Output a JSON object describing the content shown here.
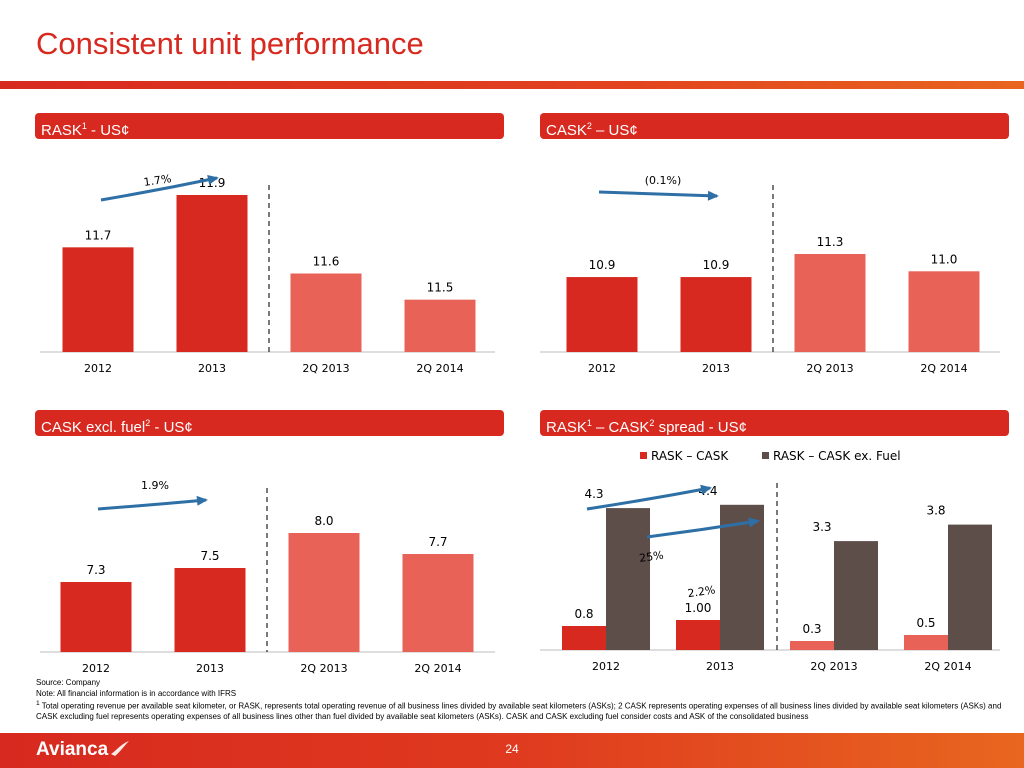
{
  "title": "Consistent unit performance",
  "colors": {
    "dark_red": "#d7291f",
    "light_red": "#e96257",
    "brown": "#5e4e4a",
    "arrow": "#2e6fa6"
  },
  "panels": [
    {
      "label": "RASK",
      "sup": "1",
      "suffix": " - US¢"
    },
    {
      "label": "CASK",
      "sup": "2",
      "suffix": " – US¢"
    },
    {
      "label": "CASK excl. fuel",
      "sup": "2",
      "suffix": " - US¢"
    },
    {
      "label": "RASK",
      "sup": "1",
      "suffix": " – CASK",
      "sup2": "2",
      "suffix2": " spread - US¢"
    }
  ],
  "chart_data": [
    {
      "type": "bar",
      "title": "RASK1 - US¢",
      "categories": [
        "2012",
        "2013",
        "2Q 2013",
        "2Q 2014"
      ],
      "values": [
        11.7,
        11.9,
        11.6,
        11.5
      ],
      "value_labels": [
        "11.7",
        "11.9",
        "11.6",
        "11.5"
      ],
      "annotations": [
        {
          "text": "1.7%",
          "between": [
            "2012",
            "2013"
          ]
        }
      ]
    },
    {
      "type": "bar",
      "title": "CASK2 – US¢",
      "categories": [
        "2012",
        "2013",
        "2Q 2013",
        "2Q 2014"
      ],
      "values": [
        10.9,
        10.9,
        11.3,
        11.0
      ],
      "value_labels": [
        "10.9",
        "10.9",
        "11.3",
        "11.0"
      ],
      "annotations": [
        {
          "text": "(0.1%)",
          "between": [
            "2012",
            "2013"
          ]
        }
      ]
    },
    {
      "type": "bar",
      "title": "CASK excl. fuel2 - US¢",
      "categories": [
        "2012",
        "2013",
        "2Q 2013",
        "2Q 2014"
      ],
      "values": [
        7.3,
        7.5,
        8.0,
        7.7
      ],
      "value_labels": [
        "7.3",
        "7.5",
        "8.0",
        "7.7"
      ],
      "annotations": [
        {
          "text": "1.9%",
          "between": [
            "2012",
            "2013"
          ]
        }
      ]
    },
    {
      "type": "bar",
      "title": "RASK1 – CASK2 spread - US¢",
      "categories": [
        "2012",
        "2013",
        "2Q 2013",
        "2Q 2014"
      ],
      "legend": "top",
      "series": [
        {
          "name": "RASK – CASK",
          "values": [
            0.8,
            1.0,
            0.3,
            0.5
          ],
          "value_labels": [
            "0.8",
            "1.00",
            "0.3",
            "0.5"
          ]
        },
        {
          "name": "RASK – CASK ex. Fuel",
          "values": [
            4.3,
            4.4,
            3.3,
            3.8
          ],
          "value_labels": [
            "4.3",
            "4.4",
            "3.3",
            "3.8"
          ]
        }
      ],
      "annotations": [
        {
          "text": "25%",
          "series": "RASK – CASK",
          "between": [
            "2012",
            "2013"
          ]
        },
        {
          "text": "2.2%",
          "series": "RASK – CASK ex. Fuel",
          "between": [
            "2012",
            "2013"
          ]
        }
      ]
    }
  ],
  "notes": {
    "source": "Source: Company",
    "note": "Note: All financial information is in accordance with IFRS",
    "footnote": "Total operating revenue per available seat kilometer, or RASK, represents total operating revenue of all business lines divided by available seat kilometers (ASKs);  2 CASK represents operating expenses of all business lines divided by available seat kilometers (ASKs) and CASK excluding fuel represents operating expenses of all business lines other than fuel divided by available seat kilometers (ASKs). CASK and CASK excluding fuel consider costs and ASK of the consolidated business",
    "footnote_marker": "1"
  },
  "footer": {
    "logo": "Avianca",
    "page": "24"
  }
}
